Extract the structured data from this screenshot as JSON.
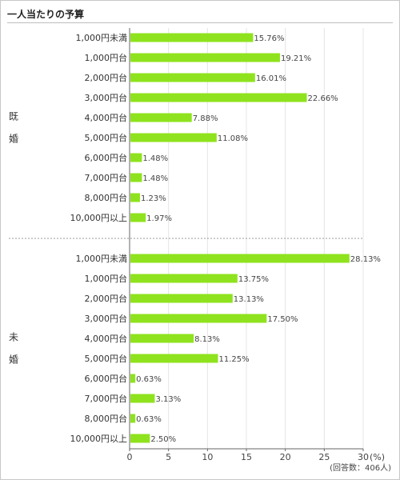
{
  "title": "一人当たりの予算",
  "chart_data": {
    "type": "bar",
    "orientation": "horizontal",
    "categories": [
      "1,000円未満",
      "1,000円台",
      "2,000円台",
      "3,000円台",
      "4,000円台",
      "5,000円台",
      "6,000円台",
      "7,000円台",
      "8,000円台",
      "10,000円以上"
    ],
    "groups": [
      {
        "name": "既婚",
        "values": [
          15.76,
          19.21,
          16.01,
          22.66,
          7.88,
          11.08,
          1.48,
          1.48,
          1.23,
          1.97
        ],
        "labels": [
          "15.76%",
          "19.21%",
          "16.01%",
          "22.66%",
          "7.88%",
          "11.08%",
          "1.48%",
          "1.48%",
          "1.23%",
          "1.97%"
        ]
      },
      {
        "name": "未婚",
        "values": [
          28.13,
          13.75,
          13.13,
          17.5,
          8.13,
          11.25,
          0.63,
          3.13,
          0.63,
          2.5
        ],
        "labels": [
          "28.13%",
          "13.75%",
          "13.13%",
          "17.50%",
          "8.13%",
          "11.25%",
          "0.63%",
          "3.13%",
          "0.63%",
          "2.50%"
        ]
      }
    ],
    "xlim": [
      0,
      30
    ],
    "xticks": [
      "0",
      "5",
      "10",
      "15",
      "20",
      "25",
      "30"
    ],
    "unit_label": "(%)",
    "note": "(回答数：406人)",
    "bar_color": "#8fe31e",
    "grid": true
  }
}
